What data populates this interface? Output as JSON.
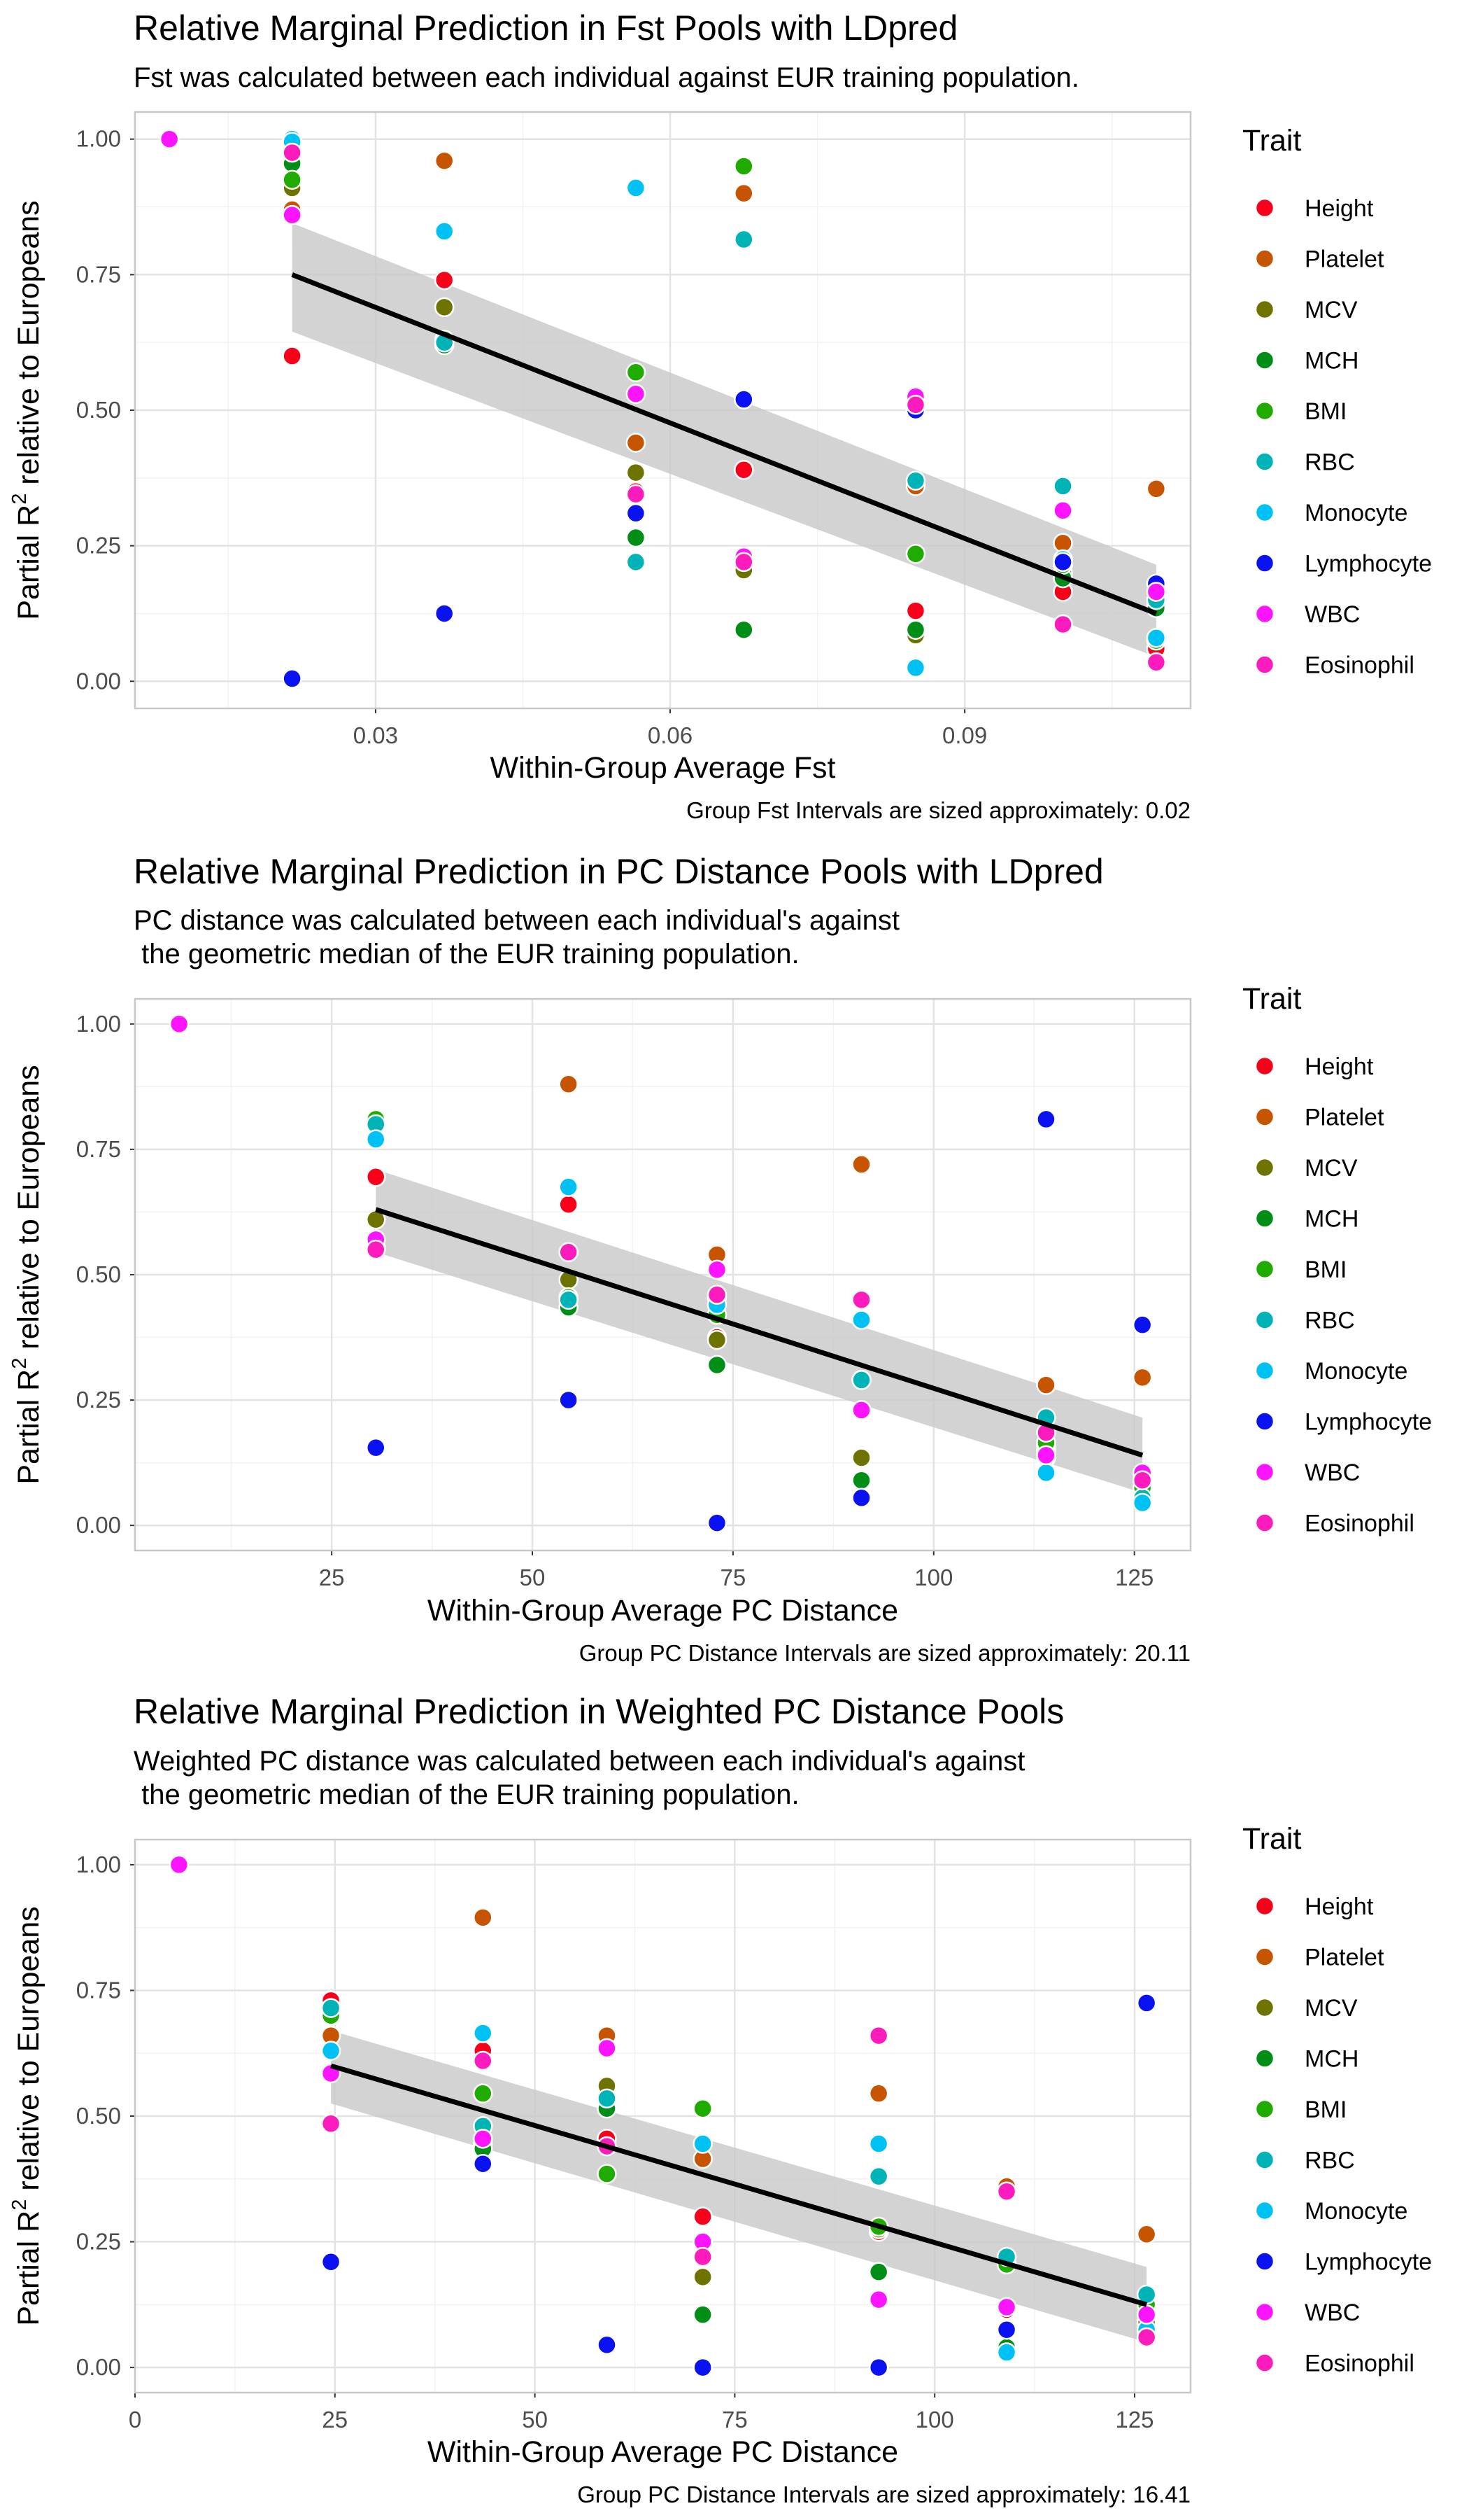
{
  "colors": {
    "Height": "#f8001a",
    "Platelet": "#c65400",
    "MCV": "#6e7300",
    "MCH": "#008e17",
    "BMI": "#1fab00",
    "RBC": "#00b3b6",
    "Monocyte": "#00c1f3",
    "Lymphocyte": "#0a12f2",
    "WBC": "#fb14ff",
    "Eosinophil": "#fc1bbd"
  },
  "chart_data": [
    {
      "type": "scatter",
      "title": "Relative Marginal Prediction in Fst Pools with LDpred",
      "subtitle": [
        "Fst was calculated between each individual against EUR training population."
      ],
      "xlabel": "Within-Group Average Fst",
      "ylabel": "Partial R",
      "ylabel_sup": "2",
      "ylabel_rest": " relative to Europeans",
      "caption": "Group Fst Intervals are sized approximately: 0.02",
      "xlim": [
        0.0055,
        0.113
      ],
      "ylim": [
        -0.05,
        1.05
      ],
      "xticks": [
        0.03,
        0.06,
        0.09
      ],
      "xtick_labels": [
        "0.03",
        "0.06",
        "0.09"
      ],
      "yticks": [
        0,
        0.25,
        0.5,
        0.75,
        1
      ],
      "ytick_labels": [
        "0.00",
        "0.25",
        "0.50",
        "0.75",
        "1.00"
      ],
      "legend_title": "Trait",
      "legend": [
        "Height",
        "Platelet",
        "MCV",
        "MCH",
        "BMI",
        "RBC",
        "Monocyte",
        "Lymphocyte",
        "WBC",
        "Eosinophil"
      ],
      "fit": {
        "x": [
          0.0215,
          0.1095
        ],
        "y": [
          0.75,
          0.125
        ],
        "band_low": [
          0.645,
          0.045
        ],
        "band_high": [
          0.845,
          0.215
        ]
      },
      "series": [
        {
          "name": "Height",
          "x": [
            0.0215,
            0.037,
            0.0565,
            0.0675,
            0.085,
            0.1,
            0.1095
          ],
          "y": [
            0.6,
            0.74,
            0.35,
            0.39,
            0.13,
            0.165,
            0.06
          ]
        },
        {
          "name": "Platelet",
          "x": [
            0.0215,
            0.037,
            0.0565,
            0.0675,
            0.085,
            0.1,
            0.1095
          ],
          "y": [
            0.87,
            0.96,
            0.44,
            0.9,
            0.36,
            0.255,
            0.355
          ]
        },
        {
          "name": "MCV",
          "x": [
            0.0215,
            0.037,
            0.0565,
            0.0675,
            0.085,
            0.1,
            0.1095
          ],
          "y": [
            0.91,
            0.69,
            0.385,
            0.205,
            0.085,
            0.2,
            0.14
          ]
        },
        {
          "name": "MCH",
          "x": [
            0.0215,
            0.037,
            0.0565,
            0.0675,
            0.085,
            0.1,
            0.1095
          ],
          "y": [
            0.955,
            0.62,
            0.265,
            0.095,
            0.095,
            0.19,
            0.135
          ]
        },
        {
          "name": "BMI",
          "x": [
            0.0215,
            0.037,
            0.0565,
            0.0675,
            0.085,
            0.1,
            0.1095
          ],
          "y": [
            0.925,
            0.63,
            0.57,
            0.95,
            0.235,
            0.215,
            0.075
          ]
        },
        {
          "name": "RBC",
          "x": [
            0.0215,
            0.037,
            0.0565,
            0.0675,
            0.085,
            0.1,
            0.1095
          ],
          "y": [
            1.0,
            0.625,
            0.22,
            0.815,
            0.37,
            0.36,
            0.15
          ]
        },
        {
          "name": "Monocyte",
          "x": [
            0.0215,
            0.037,
            0.0565,
            0.0675,
            0.085,
            0.1,
            0.1095
          ],
          "y": [
            0.995,
            0.83,
            0.91,
            0.52,
            0.025,
            0.225,
            0.08
          ]
        },
        {
          "name": "Lymphocyte",
          "x": [
            0.0215,
            0.037,
            0.0565,
            0.0675,
            0.085,
            0.1,
            0.1095
          ],
          "y": [
            0.005,
            0.125,
            0.31,
            0.52,
            0.5,
            0.22,
            0.18
          ]
        },
        {
          "name": "WBC",
          "x": [
            0.009,
            0.0215,
            0.0565,
            0.0675,
            0.085,
            0.1,
            0.1095
          ],
          "y": [
            1.0,
            0.86,
            0.53,
            0.23,
            0.525,
            0.315,
            0.165
          ]
        },
        {
          "name": "Eosinophil",
          "x": [
            0.0215,
            0.0565,
            0.0675,
            0.085,
            0.1,
            0.1095
          ],
          "y": [
            0.975,
            0.345,
            0.22,
            0.51,
            0.105,
            0.035
          ]
        }
      ]
    },
    {
      "type": "scatter",
      "title": "Relative Marginal Prediction in PC Distance Pools with LDpred",
      "subtitle": [
        "PC distance was calculated between each individual's against",
        " the geometric median of the EUR training population."
      ],
      "xlabel": "Within-Group Average PC Distance",
      "ylabel": "Partial R",
      "ylabel_sup": "2",
      "ylabel_rest": " relative to Europeans",
      "caption": "Group PC Distance Intervals are sized approximately: 20.11",
      "xlim": [
        0.5,
        132
      ],
      "ylim": [
        -0.05,
        1.05
      ],
      "xticks": [
        25,
        50,
        75,
        100,
        125
      ],
      "xtick_labels": [
        "25",
        "50",
        "75",
        "100",
        "125"
      ],
      "yticks": [
        0,
        0.25,
        0.5,
        0.75,
        1
      ],
      "ytick_labels": [
        "0.00",
        "0.25",
        "0.50",
        "0.75",
        "1.00"
      ],
      "legend_title": "Trait",
      "legend": [
        "Height",
        "Platelet",
        "MCV",
        "MCH",
        "BMI",
        "RBC",
        "Monocyte",
        "Lymphocyte",
        "WBC",
        "Eosinophil"
      ],
      "fit": {
        "x": [
          30.5,
          126
        ],
        "y": [
          0.63,
          0.14
        ],
        "band_low": [
          0.545,
          0.065
        ],
        "band_high": [
          0.71,
          0.215
        ]
      },
      "series": [
        {
          "name": "Height",
          "x": [
            30.5,
            54.5,
            73,
            91,
            114,
            126
          ],
          "y": [
            0.695,
            0.64,
            0.375,
            0.29,
            0.15,
            0.06
          ]
        },
        {
          "name": "Platelet",
          "x": [
            30.5,
            54.5,
            73,
            91,
            114,
            126
          ],
          "y": [
            0.55,
            0.88,
            0.54,
            0.72,
            0.28,
            0.295
          ]
        },
        {
          "name": "MCV",
          "x": [
            30.5,
            54.5,
            73,
            91,
            114,
            126
          ],
          "y": [
            0.61,
            0.49,
            0.37,
            0.135,
            0.16,
            0.09
          ]
        },
        {
          "name": "MCH",
          "x": [
            30.5,
            54.5,
            73,
            91,
            114,
            126
          ],
          "y": [
            0.555,
            0.435,
            0.32,
            0.09,
            0.135,
            0.055
          ]
        },
        {
          "name": "BMI",
          "x": [
            30.5,
            54.5,
            73,
            91,
            114,
            126
          ],
          "y": [
            0.81,
            0.455,
            0.42,
            0.29,
            0.165,
            0.075
          ]
        },
        {
          "name": "RBC",
          "x": [
            30.5,
            54.5,
            73,
            91,
            114,
            126
          ],
          "y": [
            0.8,
            0.45,
            0.455,
            0.29,
            0.215,
            0.055
          ]
        },
        {
          "name": "Monocyte",
          "x": [
            30.5,
            54.5,
            73,
            91,
            114,
            126
          ],
          "y": [
            0.77,
            0.675,
            0.44,
            0.41,
            0.105,
            0.045
          ]
        },
        {
          "name": "Lymphocyte",
          "x": [
            30.5,
            54.5,
            73,
            91,
            114,
            126
          ],
          "y": [
            0.155,
            0.25,
            0.005,
            0.055,
            0.81,
            0.4
          ]
        },
        {
          "name": "WBC",
          "x": [
            6,
            30.5,
            54.5,
            73,
            91,
            114,
            126
          ],
          "y": [
            1.0,
            0.57,
            0.545,
            0.51,
            0.23,
            0.14,
            0.105
          ]
        },
        {
          "name": "Eosinophil",
          "x": [
            30.5,
            54.5,
            73,
            91,
            114,
            126
          ],
          "y": [
            0.55,
            0.545,
            0.46,
            0.45,
            0.185,
            0.09
          ]
        }
      ]
    },
    {
      "type": "scatter",
      "title": "Relative Marginal Prediction in Weighted PC Distance Pools",
      "subtitle": [
        "Weighted PC distance was calculated between each individual's against",
        " the geometric median of the EUR training population."
      ],
      "xlabel": "Within-Group Average PC Distance",
      "ylabel": "Partial R",
      "ylabel_sup": "2",
      "ylabel_rest": " relative to Europeans",
      "caption": "Group PC Distance Intervals are sized approximately: 16.41",
      "xlim": [
        0,
        132
      ],
      "ylim": [
        -0.05,
        1.05
      ],
      "xticks": [
        0,
        25,
        50,
        75,
        100,
        125
      ],
      "xtick_labels": [
        "0",
        "25",
        "50",
        "75",
        "100",
        "125"
      ],
      "yticks": [
        0,
        0.25,
        0.5,
        0.75,
        1
      ],
      "ytick_labels": [
        "0.00",
        "0.25",
        "0.50",
        "0.75",
        "1.00"
      ],
      "legend_title": "Trait",
      "legend": [
        "Height",
        "Platelet",
        "MCV",
        "MCH",
        "BMI",
        "RBC",
        "Monocyte",
        "Lymphocyte",
        "WBC",
        "Eosinophil"
      ],
      "fit": {
        "x": [
          24.5,
          126.5
        ],
        "y": [
          0.6,
          0.125
        ],
        "band_low": [
          0.525,
          0.05
        ],
        "band_high": [
          0.67,
          0.2
        ]
      },
      "series": [
        {
          "name": "Height",
          "x": [
            24.5,
            43.5,
            59,
            71,
            93,
            109,
            126.5
          ],
          "y": [
            0.73,
            0.63,
            0.455,
            0.3,
            0.27,
            0.115,
            0.065
          ]
        },
        {
          "name": "Platelet",
          "x": [
            24.5,
            43.5,
            59,
            71,
            93,
            109,
            126.5
          ],
          "y": [
            0.66,
            0.895,
            0.66,
            0.415,
            0.545,
            0.36,
            0.265
          ]
        },
        {
          "name": "MCV",
          "x": [
            24.5,
            43.5,
            59,
            71,
            93,
            109,
            126.5
          ],
          "y": [
            0.705,
            0.445,
            0.56,
            0.18,
            0.275,
            0.04,
            0.09
          ]
        },
        {
          "name": "MCH",
          "x": [
            24.5,
            43.5,
            59,
            71,
            93,
            109,
            126.5
          ],
          "y": [
            0.7,
            0.435,
            0.515,
            0.105,
            0.19,
            0.04,
            0.06
          ]
        },
        {
          "name": "BMI",
          "x": [
            24.5,
            43.5,
            59,
            71,
            93,
            109,
            126.5
          ],
          "y": [
            0.7,
            0.545,
            0.385,
            0.515,
            0.28,
            0.205,
            0.125
          ]
        },
        {
          "name": "RBC",
          "x": [
            24.5,
            43.5,
            59,
            71,
            93,
            109,
            126.5
          ],
          "y": [
            0.715,
            0.48,
            0.535,
            0.225,
            0.38,
            0.22,
            0.145
          ]
        },
        {
          "name": "Monocyte",
          "x": [
            24.5,
            43.5,
            59,
            71,
            93,
            109,
            126.5
          ],
          "y": [
            0.63,
            0.665,
            0.44,
            0.445,
            0.445,
            0.03,
            0.075
          ]
        },
        {
          "name": "Lymphocyte",
          "x": [
            24.5,
            43.5,
            59,
            71,
            93,
            109,
            126.5
          ],
          "y": [
            0.21,
            0.405,
            0.045,
            0.0,
            0.0,
            0.075,
            0.725
          ]
        },
        {
          "name": "WBC",
          "x": [
            5.5,
            24.5,
            43.5,
            59,
            71,
            93,
            109,
            126.5
          ],
          "y": [
            1.0,
            0.585,
            0.455,
            0.635,
            0.25,
            0.135,
            0.12,
            0.105
          ]
        },
        {
          "name": "Eosinophil",
          "x": [
            24.5,
            43.5,
            59,
            71,
            93,
            109,
            126.5
          ],
          "y": [
            0.485,
            0.61,
            0.44,
            0.22,
            0.66,
            0.35,
            0.06
          ]
        }
      ]
    }
  ]
}
